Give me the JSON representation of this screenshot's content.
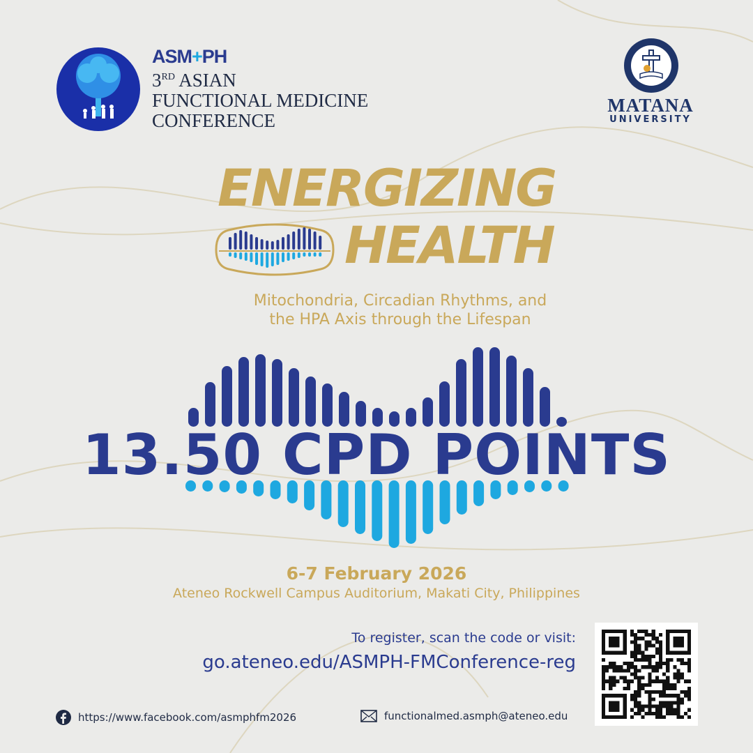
{
  "header": {
    "org_logo_text": "ASM+PH",
    "conference_ordinal": "3",
    "conference_ordinal_suffix": "RD",
    "conference_line1": "ASIAN",
    "conference_line2": "FUNCTIONAL MEDICINE",
    "conference_line3": "CONFERENCE",
    "partner_name": "MATANA",
    "partner_sub": "UNIVERSITY"
  },
  "theme": {
    "title_line1": "ENERGIZING",
    "title_line2": "HEALTH",
    "subtitle_line1": "Mitochondria, Circadian Rhythms, and",
    "subtitle_line2": "the HPA Axis through the Lifespan"
  },
  "cpd": "13.50 CPD POINTS",
  "event": {
    "date": "6-7 February 2026",
    "venue": "Ateneo Rockwell Campus Auditorium, Makati City, Philippines"
  },
  "registration": {
    "prompt": "To register, scan the code or visit:",
    "url": "go.ateneo.edu/ASMPH-FMConference-reg"
  },
  "footer": {
    "facebook": "https://www.facebook.com/asmphfm2026",
    "email": "functionalmed.asmph@ateneo.edu"
  },
  "colors": {
    "navy": "#2a3b8f",
    "sky": "#1ea8e0",
    "gold": "#c9a85a",
    "background": "#ebebe9"
  }
}
